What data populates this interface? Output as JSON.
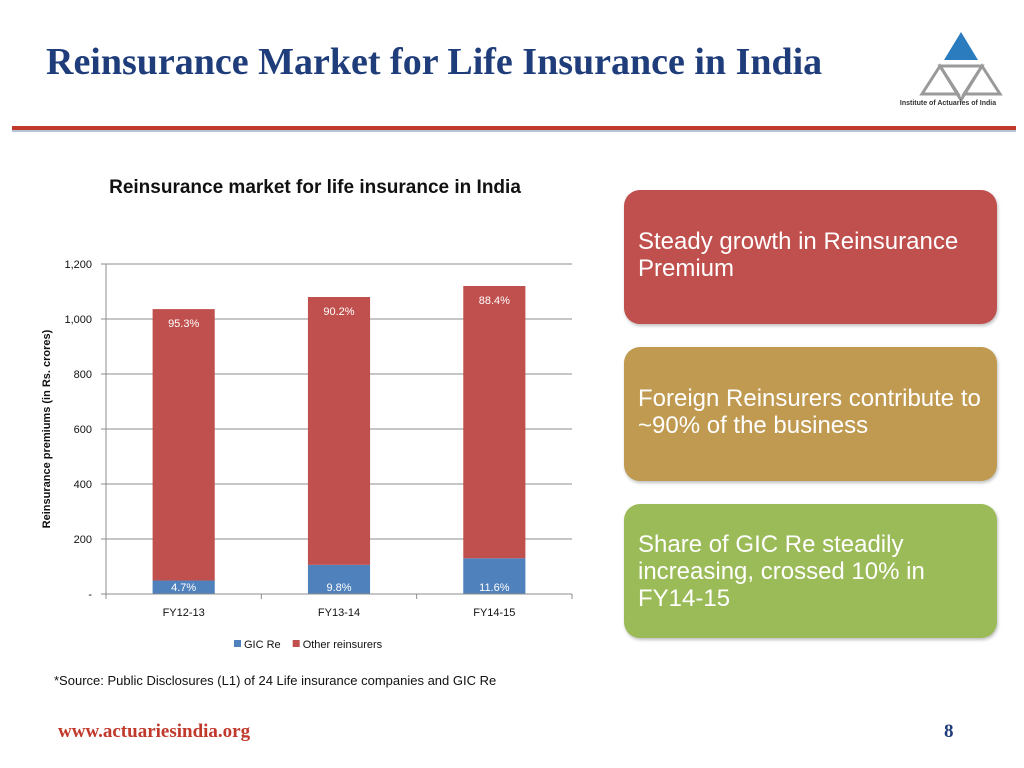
{
  "slide": {
    "title": "Reinsurance Market for Life Insurance in India",
    "logo_text": "Institute of Actuaries of India",
    "source_note": "*Source: Public Disclosures (L1) of 24 Life insurance companies and GIC Re",
    "footer_url": "www.actuariesindia.org",
    "page_number": "8"
  },
  "callouts": [
    {
      "text": "Steady growth in Reinsurance Premium",
      "color": "#c0504d"
    },
    {
      "text": "Foreign Reinsurers contribute to ~90% of the business",
      "color": "#c09a50"
    },
    {
      "text": "Share of GIC Re steadily increasing, crossed 10% in FY14-15",
      "color": "#9bbb59"
    }
  ],
  "chart_data": {
    "type": "bar",
    "stacked": true,
    "title": "Reinsurance market for life insurance in India",
    "xlabel": "",
    "ylabel": "Reinsurance premiums (in Rs. crores)",
    "ylim": [
      0,
      1200
    ],
    "yticks": [
      0,
      200,
      400,
      600,
      800,
      1000,
      1200
    ],
    "ytick_labels": [
      "-",
      "200",
      "400",
      "600",
      "800",
      "1,000",
      "1,200"
    ],
    "categories": [
      "FY12-13",
      "FY13-14",
      "FY14-15"
    ],
    "grid": true,
    "legend_position": "bottom",
    "series": [
      {
        "name": "GIC Re",
        "color": "#4f81bd",
        "values": [
          49,
          106,
          130
        ],
        "labels": [
          "4.7%",
          "9.8%",
          "11.6%"
        ]
      },
      {
        "name": "Other reinsurers",
        "color": "#c0504d",
        "values": [
          987,
          974,
          990
        ],
        "labels": [
          "95.3%",
          "90.2%",
          "88.4%"
        ]
      }
    ]
  }
}
